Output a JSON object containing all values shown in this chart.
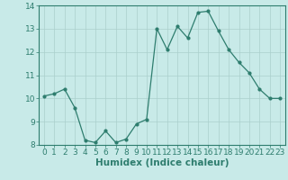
{
  "xlabel": "Humidex (Indice chaleur)",
  "x": [
    0,
    1,
    2,
    3,
    4,
    5,
    6,
    7,
    8,
    9,
    10,
    11,
    12,
    13,
    14,
    15,
    16,
    17,
    18,
    19,
    20,
    21,
    22,
    23
  ],
  "y": [
    10.1,
    10.2,
    10.4,
    9.6,
    8.2,
    8.1,
    8.6,
    8.1,
    8.25,
    8.9,
    9.1,
    13.0,
    12.1,
    13.1,
    12.6,
    13.7,
    13.75,
    12.9,
    12.1,
    11.55,
    11.1,
    10.4,
    10.0,
    10.0
  ],
  "line_color": "#2e7d6e",
  "marker": "o",
  "markersize": 2.0,
  "linewidth": 0.9,
  "background_color": "#c8eae8",
  "grid_color": "#aacfcc",
  "grid_linewidth": 0.5,
  "ylim": [
    8,
    14
  ],
  "xlim": [
    -0.5,
    23.5
  ],
  "yticks": [
    8,
    9,
    10,
    11,
    12,
    13,
    14
  ],
  "xticks": [
    0,
    1,
    2,
    3,
    4,
    5,
    6,
    7,
    8,
    9,
    10,
    11,
    12,
    13,
    14,
    15,
    16,
    17,
    18,
    19,
    20,
    21,
    22,
    23
  ],
  "xlabel_fontsize": 7.5,
  "tick_fontsize": 6.5,
  "tick_color": "#2e7d6e",
  "spine_color": "#2e7d6e"
}
